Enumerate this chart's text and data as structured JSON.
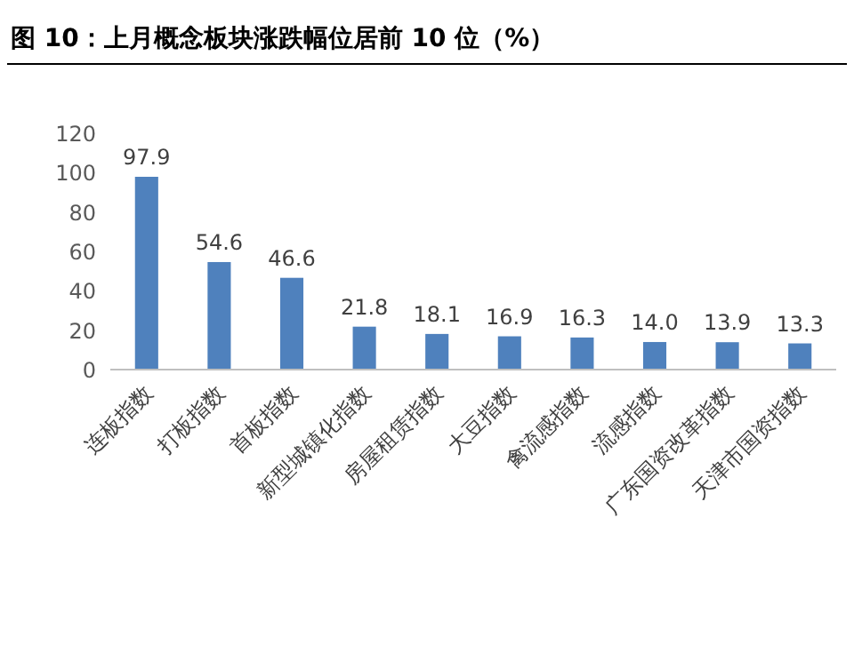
{
  "chart_data": {
    "type": "bar",
    "title": "图 10：上月概念板块涨跌幅位居前 10 位（%）",
    "categories": [
      "连板指数",
      "打板指数",
      "首板指数",
      "新型城镇化指数",
      "房屋租赁指数",
      "大豆指数",
      "禽流感指数",
      "流感指数",
      "广东国资改革指数",
      "天津市国资指数"
    ],
    "values": [
      97.9,
      54.6,
      46.6,
      21.8,
      18.1,
      16.9,
      16.3,
      14.0,
      13.9,
      13.3
    ],
    "value_labels": [
      "97.9",
      "54.6",
      "46.6",
      "21.8",
      "18.1",
      "16.9",
      "16.3",
      "14.0",
      "13.9",
      "13.3"
    ],
    "color": "#4f81bd",
    "ylim": [
      0,
      120
    ],
    "yticks": [
      0,
      20,
      40,
      60,
      80,
      100,
      120
    ]
  }
}
